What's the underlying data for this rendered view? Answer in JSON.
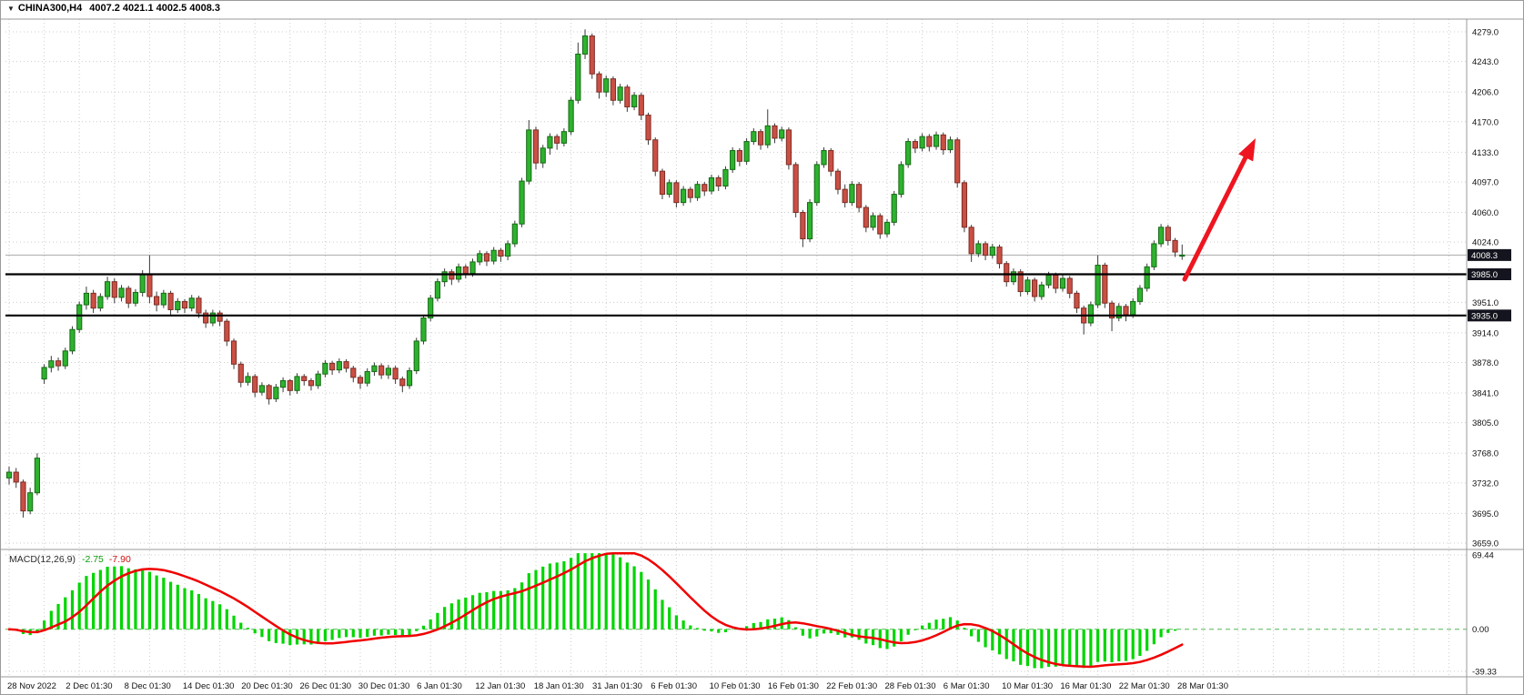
{
  "window": {
    "dropdown_icon": "▼",
    "symbol_timeframe": "CHINA300,H4",
    "ohlc_readout": "4007.2 4021.1 4002.5 4008.3"
  },
  "colors": {
    "background": "#ffffff",
    "grid": "#cccccc",
    "up_fill": "#2eb22e",
    "up_border": "#156a15",
    "down_fill": "#ca4f44",
    "down_border": "#7c2d26",
    "wick": "#3a3a3a",
    "macd_histogram": "#00d500",
    "macd_signal": "#f00000",
    "macd_zero": "#57b657",
    "level_line": "#000000",
    "current_price_line": "#a9a9a9",
    "badge_bg": "#14141e",
    "badge_text": "#ffffff",
    "arrow": "#ee1520",
    "axis_text": "#111111",
    "frame": "#9a9a9a"
  },
  "chart_data": {
    "type": "candlestick",
    "symbol": "CHINA300",
    "timeframe": "H4",
    "title": "CHINA300,H4 4007.2 4021.1 4002.5 4008.3",
    "last_candle": {
      "open": 4007.2,
      "high": 4021.1,
      "low": 4002.5,
      "close": 4008.3
    },
    "current_price": 4008.3,
    "ylim_main": [
      3659,
      4279
    ],
    "price_axis_values": [
      4279,
      4243,
      4206,
      4170,
      4133,
      4097,
      4060,
      4024,
      3951,
      3914,
      3878,
      3841,
      3805,
      3768,
      3732,
      3695,
      3659
    ],
    "horizontal_level_lines": [
      3985,
      3935
    ],
    "time_labels": [
      "28 Nov 2022",
      "2 Dec 01:30",
      "8 Dec 01:30",
      "14 Dec 01:30",
      "20 Dec 01:30",
      "26 Dec 01:30",
      "30 Dec 01:30",
      "6 Jan 01:30",
      "12 Jan 01:30",
      "18 Jan 01:30",
      "31 Jan 01:30",
      "6 Feb 01:30",
      "10 Feb 01:30",
      "16 Feb 01:30",
      "22 Feb 01:30",
      "28 Feb 01:30",
      "6 Mar 01:30",
      "10 Mar 01:30",
      "16 Mar 01:30",
      "22 Mar 01:30",
      "28 Mar 01:30"
    ],
    "candles_ohlc": [
      [
        3738,
        3752,
        3730,
        3745
      ],
      [
        3745,
        3750,
        3726,
        3733
      ],
      [
        3733,
        3736,
        3690,
        3698
      ],
      [
        3698,
        3726,
        3694,
        3720
      ],
      [
        3720,
        3768,
        3717,
        3762
      ],
      [
        3858,
        3876,
        3852,
        3872
      ],
      [
        3872,
        3886,
        3866,
        3880
      ],
      [
        3880,
        3884,
        3868,
        3874
      ],
      [
        3874,
        3896,
        3870,
        3892
      ],
      [
        3892,
        3922,
        3888,
        3918
      ],
      [
        3918,
        3952,
        3914,
        3948
      ],
      [
        3948,
        3970,
        3942,
        3962
      ],
      [
        3962,
        3966,
        3938,
        3944
      ],
      [
        3944,
        3962,
        3940,
        3958
      ],
      [
        3958,
        3982,
        3954,
        3976
      ],
      [
        3976,
        3980,
        3950,
        3957
      ],
      [
        3957,
        3972,
        3952,
        3968
      ],
      [
        3968,
        3971,
        3944,
        3950
      ],
      [
        3950,
        3967,
        3946,
        3963
      ],
      [
        3963,
        3990,
        3958,
        3985
      ],
      [
        3985,
        4008,
        3950,
        3958
      ],
      [
        3958,
        3964,
        3940,
        3948
      ],
      [
        3948,
        3966,
        3944,
        3962
      ],
      [
        3962,
        3965,
        3936,
        3942
      ],
      [
        3942,
        3956,
        3938,
        3952
      ],
      [
        3952,
        3955,
        3938,
        3944
      ],
      [
        3944,
        3960,
        3940,
        3956
      ],
      [
        3956,
        3959,
        3932,
        3938
      ],
      [
        3938,
        3942,
        3920,
        3926
      ],
      [
        3926,
        3942,
        3922,
        3938
      ],
      [
        3938,
        3941,
        3922,
        3928
      ],
      [
        3928,
        3931,
        3898,
        3904
      ],
      [
        3904,
        3907,
        3870,
        3876
      ],
      [
        3876,
        3879,
        3848,
        3854
      ],
      [
        3854,
        3866,
        3850,
        3861
      ],
      [
        3861,
        3864,
        3836,
        3842
      ],
      [
        3842,
        3854,
        3838,
        3850
      ],
      [
        3850,
        3852,
        3827,
        3834
      ],
      [
        3834,
        3852,
        3830,
        3848
      ],
      [
        3848,
        3860,
        3842,
        3856
      ],
      [
        3856,
        3858,
        3838,
        3844
      ],
      [
        3844,
        3865,
        3840,
        3861
      ],
      [
        3861,
        3864,
        3850,
        3856
      ],
      [
        3856,
        3859,
        3844,
        3850
      ],
      [
        3850,
        3868,
        3846,
        3864
      ],
      [
        3864,
        3881,
        3860,
        3877
      ],
      [
        3877,
        3880,
        3863,
        3869
      ],
      [
        3869,
        3883,
        3865,
        3879
      ],
      [
        3879,
        3882,
        3866,
        3871
      ],
      [
        3871,
        3874,
        3854,
        3860
      ],
      [
        3860,
        3863,
        3846,
        3853
      ],
      [
        3853,
        3871,
        3849,
        3867
      ],
      [
        3867,
        3878,
        3862,
        3874
      ],
      [
        3874,
        3877,
        3858,
        3863
      ],
      [
        3863,
        3875,
        3858,
        3871
      ],
      [
        3871,
        3874,
        3852,
        3858
      ],
      [
        3858,
        3861,
        3842,
        3850
      ],
      [
        3850,
        3872,
        3846,
        3868
      ],
      [
        3868,
        3908,
        3864,
        3904
      ],
      [
        3904,
        3936,
        3900,
        3932
      ],
      [
        3932,
        3960,
        3928,
        3956
      ],
      [
        3956,
        3980,
        3952,
        3976
      ],
      [
        3976,
        3992,
        3970,
        3988
      ],
      [
        3988,
        3991,
        3972,
        3979
      ],
      [
        3979,
        3998,
        3975,
        3994
      ],
      [
        3994,
        3997,
        3980,
        3986
      ],
      [
        3986,
        4004,
        3982,
        4000
      ],
      [
        4000,
        4014,
        3996,
        4010
      ],
      [
        4010,
        4013,
        3995,
        4001
      ],
      [
        4001,
        4018,
        3997,
        4014
      ],
      [
        4014,
        4017,
        4000,
        4007
      ],
      [
        4007,
        4026,
        4002,
        4022
      ],
      [
        4022,
        4050,
        4018,
        4046
      ],
      [
        4046,
        4102,
        4042,
        4098
      ],
      [
        4098,
        4172,
        4094,
        4160
      ],
      [
        4160,
        4164,
        4112,
        4120
      ],
      [
        4120,
        4142,
        4114,
        4138
      ],
      [
        4138,
        4156,
        4130,
        4152
      ],
      [
        4152,
        4155,
        4136,
        4144
      ],
      [
        4144,
        4162,
        4140,
        4158
      ],
      [
        4158,
        4200,
        4154,
        4196
      ],
      [
        4196,
        4266,
        4192,
        4252
      ],
      [
        4252,
        4282,
        4246,
        4274
      ],
      [
        4274,
        4277,
        4222,
        4228
      ],
      [
        4228,
        4231,
        4198,
        4206
      ],
      [
        4206,
        4226,
        4200,
        4222
      ],
      [
        4222,
        4225,
        4190,
        4196
      ],
      [
        4196,
        4216,
        4192,
        4212
      ],
      [
        4212,
        4215,
        4182,
        4188
      ],
      [
        4188,
        4206,
        4184,
        4202
      ],
      [
        4202,
        4205,
        4172,
        4178
      ],
      [
        4178,
        4181,
        4142,
        4148
      ],
      [
        4148,
        4151,
        4104,
        4110
      ],
      [
        4110,
        4113,
        4076,
        4082
      ],
      [
        4082,
        4100,
        4078,
        4096
      ],
      [
        4096,
        4099,
        4066,
        4072
      ],
      [
        4072,
        4092,
        4068,
        4088
      ],
      [
        4088,
        4091,
        4072,
        4078
      ],
      [
        4078,
        4098,
        4074,
        4094
      ],
      [
        4094,
        4097,
        4080,
        4086
      ],
      [
        4086,
        4106,
        4082,
        4102
      ],
      [
        4102,
        4105,
        4086,
        4092
      ],
      [
        4092,
        4116,
        4088,
        4112
      ],
      [
        4112,
        4139,
        4108,
        4135
      ],
      [
        4135,
        4138,
        4116,
        4122
      ],
      [
        4122,
        4150,
        4118,
        4146
      ],
      [
        4146,
        4162,
        4142,
        4158
      ],
      [
        4158,
        4161,
        4136,
        4142
      ],
      [
        4142,
        4185,
        4138,
        4165
      ],
      [
        4165,
        4168,
        4144,
        4150
      ],
      [
        4150,
        4164,
        4146,
        4160
      ],
      [
        4160,
        4163,
        4112,
        4118
      ],
      [
        4118,
        4121,
        4054,
        4060
      ],
      [
        4060,
        4063,
        4018,
        4028
      ],
      [
        4028,
        4076,
        4024,
        4072
      ],
      [
        4072,
        4122,
        4068,
        4118
      ],
      [
        4118,
        4139,
        4114,
        4135
      ],
      [
        4135,
        4138,
        4104,
        4110
      ],
      [
        4110,
        4113,
        4082,
        4088
      ],
      [
        4088,
        4094,
        4066,
        4072
      ],
      [
        4072,
        4098,
        4068,
        4094
      ],
      [
        4094,
        4097,
        4060,
        4066
      ],
      [
        4066,
        4069,
        4036,
        4042
      ],
      [
        4042,
        4060,
        4038,
        4056
      ],
      [
        4056,
        4059,
        4028,
        4034
      ],
      [
        4034,
        4052,
        4030,
        4048
      ],
      [
        4048,
        4086,
        4044,
        4082
      ],
      [
        4082,
        4122,
        4078,
        4118
      ],
      [
        4118,
        4150,
        4114,
        4146
      ],
      [
        4146,
        4149,
        4132,
        4138
      ],
      [
        4138,
        4156,
        4134,
        4152
      ],
      [
        4152,
        4155,
        4134,
        4140
      ],
      [
        4140,
        4158,
        4136,
        4154
      ],
      [
        4154,
        4157,
        4130,
        4136
      ],
      [
        4136,
        4152,
        4132,
        4148
      ],
      [
        4148,
        4151,
        4090,
        4096
      ],
      [
        4096,
        4099,
        4036,
        4042
      ],
      [
        4042,
        4045,
        4000,
        4010
      ],
      [
        4010,
        4026,
        4006,
        4022
      ],
      [
        4022,
        4025,
        4002,
        4008
      ],
      [
        4008,
        4022,
        4004,
        4018
      ],
      [
        4018,
        4021,
        3992,
        3998
      ],
      [
        3998,
        4001,
        3970,
        3976
      ],
      [
        3976,
        3992,
        3972,
        3988
      ],
      [
        3988,
        3991,
        3958,
        3964
      ],
      [
        3964,
        3982,
        3960,
        3978
      ],
      [
        3978,
        3981,
        3952,
        3958
      ],
      [
        3958,
        3976,
        3954,
        3972
      ],
      [
        3972,
        3988,
        3968,
        3984
      ],
      [
        3984,
        3987,
        3962,
        3968
      ],
      [
        3968,
        3984,
        3964,
        3980
      ],
      [
        3980,
        3983,
        3956,
        3962
      ],
      [
        3962,
        3965,
        3938,
        3944
      ],
      [
        3944,
        3947,
        3912,
        3926
      ],
      [
        3926,
        3952,
        3922,
        3948
      ],
      [
        3948,
        4008,
        3944,
        3996
      ],
      [
        3996,
        3999,
        3944,
        3950
      ],
      [
        3950,
        3953,
        3916,
        3932
      ],
      [
        3932,
        3950,
        3928,
        3946
      ],
      [
        3946,
        3949,
        3928,
        3936
      ],
      [
        3936,
        3956,
        3932,
        3952
      ],
      [
        3952,
        3972,
        3948,
        3968
      ],
      [
        3968,
        3998,
        3964,
        3994
      ],
      [
        3994,
        4026,
        3990,
        4022
      ],
      [
        4022,
        4046,
        4018,
        4042
      ],
      [
        4042,
        4045,
        4020,
        4026
      ],
      [
        4026,
        4029,
        4006,
        4012
      ],
      [
        4007.2,
        4021.1,
        4002.5,
        4008.3
      ]
    ],
    "macd": {
      "label": "MACD(12,26,9)",
      "fast": 12,
      "slow": 26,
      "signal_period": 9,
      "main_value": -2.75,
      "signal_value": -7.9,
      "axis_values": [
        69.44,
        0,
        -39.33
      ],
      "ylim": [
        -39.33,
        69.44
      ]
    },
    "annotation_arrow": {
      "description": "red bullish trend arrow pointing up-right",
      "color": "#ee1520"
    }
  }
}
